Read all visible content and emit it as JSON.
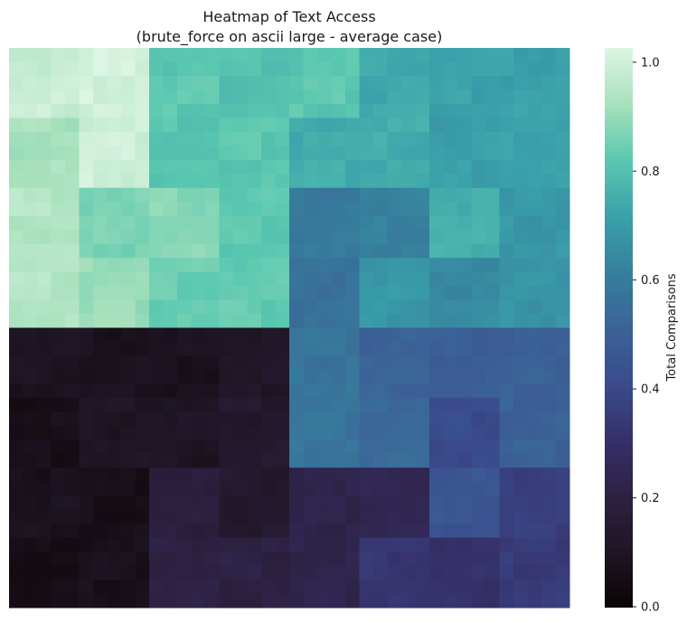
{
  "chart_data": {
    "type": "heatmap",
    "title": "Heatmap of Text Access",
    "subtitle": "(brute_force on ascii large - average case)",
    "colorbar_label": "Total Comparisons",
    "colormap": "mako",
    "value_range": [
      0,
      1
    ],
    "colorbar_ticks": [
      "0.0",
      "0.2",
      "0.4",
      "0.6",
      "0.8",
      "1.0"
    ],
    "colorbar_tick_values": [
      0.0,
      0.2,
      0.4,
      0.6,
      0.8,
      1.0
    ],
    "grid_rows": 8,
    "grid_cols": 8,
    "values": [
      [
        0.96,
        0.98,
        0.8,
        0.78,
        0.8,
        0.72,
        0.7,
        0.7
      ],
      [
        0.9,
        0.97,
        0.79,
        0.8,
        0.73,
        0.73,
        0.69,
        0.7
      ],
      [
        0.92,
        0.84,
        0.86,
        0.8,
        0.58,
        0.6,
        0.74,
        0.67
      ],
      [
        0.92,
        0.88,
        0.82,
        0.81,
        0.55,
        0.67,
        0.63,
        0.66
      ],
      [
        0.09,
        0.08,
        0.08,
        0.11,
        0.56,
        0.5,
        0.48,
        0.49
      ],
      [
        0.06,
        0.1,
        0.1,
        0.13,
        0.56,
        0.52,
        0.4,
        0.49
      ],
      [
        0.08,
        0.06,
        0.18,
        0.13,
        0.22,
        0.24,
        0.44,
        0.36
      ],
      [
        0.05,
        0.07,
        0.2,
        0.2,
        0.22,
        0.32,
        0.3,
        0.34
      ]
    ],
    "fine_resolution": 40,
    "legend_position": "right",
    "grid": false
  },
  "colors": {
    "mako_stops": [
      [
        0.0,
        "#0b0405"
      ],
      [
        0.1,
        "#1e1624"
      ],
      [
        0.2,
        "#2d2143"
      ],
      [
        0.3,
        "#36306a"
      ],
      [
        0.4,
        "#3a4b8c"
      ],
      [
        0.5,
        "#3b6397"
      ],
      [
        0.6,
        "#36809d"
      ],
      [
        0.7,
        "#3aa1aa"
      ],
      [
        0.8,
        "#5ac8b0"
      ],
      [
        0.9,
        "#a8e1bc"
      ],
      [
        1.0,
        "#def5e5"
      ]
    ]
  }
}
